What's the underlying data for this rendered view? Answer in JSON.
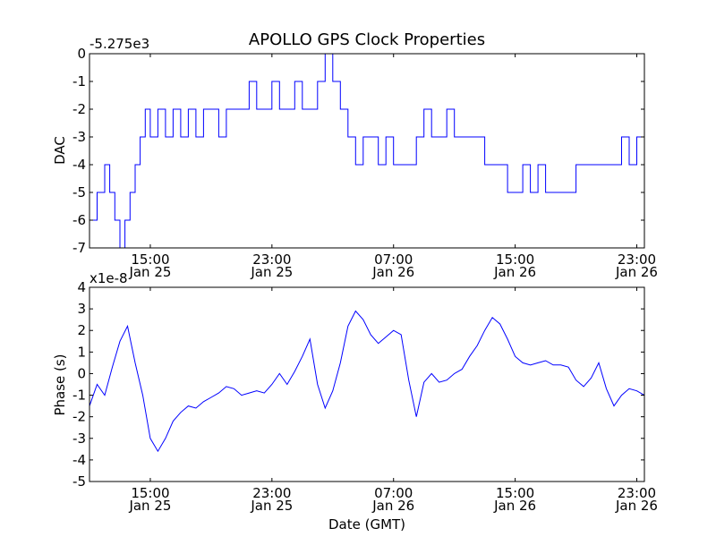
{
  "title": "APOLLO GPS Clock Properties",
  "colors": {
    "line": "#0000ff",
    "axes": "#000000",
    "background": "#ffffff"
  },
  "chart_data": [
    {
      "type": "line",
      "title": "APOLLO GPS Clock Properties",
      "ylabel": "DAC",
      "offset_label": "-5.275e3",
      "xlim": [
        "Jan 25 11:00",
        "Jan 26 23:30"
      ],
      "ylim": [
        -7,
        0
      ],
      "yticks": [
        0,
        -1,
        -2,
        -3,
        -4,
        -5,
        -6,
        -7
      ],
      "xtick_labels": [
        {
          "time": "15:00",
          "date": "Jan 25"
        },
        {
          "time": "23:00",
          "date": "Jan 25"
        },
        {
          "time": "07:00",
          "date": "Jan 26"
        },
        {
          "time": "15:00",
          "date": "Jan 26"
        },
        {
          "time": "23:00",
          "date": "Jan 26"
        }
      ],
      "grid": false,
      "series": [
        {
          "x": [
            "Jan 25 11:00",
            "Jan 25 11:30",
            "Jan 25 12:00",
            "Jan 25 12:20",
            "Jan 25 12:40",
            "Jan 25 13:00",
            "Jan 25 13:20",
            "Jan 25 13:40",
            "Jan 25 14:00",
            "Jan 25 14:20",
            "Jan 25 14:40",
            "Jan 25 15:00",
            "Jan 25 15:30",
            "Jan 25 16:00",
            "Jan 25 16:30",
            "Jan 25 17:00",
            "Jan 25 17:30",
            "Jan 25 18:00",
            "Jan 25 18:30",
            "Jan 25 19:00",
            "Jan 25 19:30",
            "Jan 25 20:00",
            "Jan 25 20:30",
            "Jan 25 21:00",
            "Jan 25 21:30",
            "Jan 25 22:00",
            "Jan 25 22:30",
            "Jan 25 23:00",
            "Jan 25 23:30",
            "Jan 26 00:00",
            "Jan 26 00:30",
            "Jan 26 01:00",
            "Jan 26 01:30",
            "Jan 26 02:00",
            "Jan 26 02:30",
            "Jan 26 03:00",
            "Jan 26 03:30",
            "Jan 26 04:00",
            "Jan 26 04:30",
            "Jan 26 05:00",
            "Jan 26 05:30",
            "Jan 26 06:00",
            "Jan 26 06:30",
            "Jan 26 07:00",
            "Jan 26 07:30",
            "Jan 26 08:00",
            "Jan 26 08:30",
            "Jan 26 09:00",
            "Jan 26 09:30",
            "Jan 26 10:00",
            "Jan 26 10:30",
            "Jan 26 11:00",
            "Jan 26 11:30",
            "Jan 26 12:00",
            "Jan 26 12:30",
            "Jan 26 13:00",
            "Jan 26 13:30",
            "Jan 26 14:00",
            "Jan 26 14:30",
            "Jan 26 15:00",
            "Jan 26 15:30",
            "Jan 26 16:00",
            "Jan 26 16:30",
            "Jan 26 17:00",
            "Jan 26 17:30",
            "Jan 26 18:00",
            "Jan 26 18:30",
            "Jan 26 19:00",
            "Jan 26 19:30",
            "Jan 26 20:00",
            "Jan 26 20:30",
            "Jan 26 21:00",
            "Jan 26 21:30",
            "Jan 26 22:00",
            "Jan 26 22:30",
            "Jan 26 23:00",
            "Jan 26 23:30"
          ],
          "y": [
            -6,
            -5,
            -4,
            -5,
            -6,
            -7,
            -6,
            -5,
            -4,
            -3,
            -2,
            -3,
            -2,
            -3,
            -2,
            -3,
            -2,
            -3,
            -2,
            -2,
            -3,
            -2,
            -2,
            -2,
            -1,
            -2,
            -2,
            -1,
            -2,
            -2,
            -1,
            -2,
            -2,
            -1,
            0,
            -1,
            -2,
            -3,
            -4,
            -3,
            -3,
            -4,
            -3,
            -4,
            -4,
            -4,
            -3,
            -2,
            -3,
            -3,
            -2,
            -3,
            -3,
            -3,
            -3,
            -4,
            -4,
            -4,
            -5,
            -5,
            -4,
            -5,
            -4,
            -5,
            -5,
            -5,
            -5,
            -4,
            -4,
            -4,
            -4,
            -4,
            -4,
            -3,
            -4,
            -3,
            -4
          ],
          "step": true
        }
      ]
    },
    {
      "type": "line",
      "ylabel": "Phase (s)",
      "xlabel": "Date (GMT)",
      "offset_label": "x1e-8",
      "xlim": [
        "Jan 25 11:00",
        "Jan 26 23:30"
      ],
      "ylim": [
        -5,
        4
      ],
      "yticks": [
        4,
        3,
        2,
        1,
        0,
        -1,
        -2,
        -3,
        -4,
        -5
      ],
      "xtick_labels": [
        {
          "time": "15:00",
          "date": "Jan 25"
        },
        {
          "time": "23:00",
          "date": "Jan 25"
        },
        {
          "time": "07:00",
          "date": "Jan 26"
        },
        {
          "time": "15:00",
          "date": "Jan 26"
        },
        {
          "time": "23:00",
          "date": "Jan 26"
        }
      ],
      "grid": false,
      "series": [
        {
          "x": [
            "Jan 25 11:00",
            "Jan 25 11:30",
            "Jan 25 12:00",
            "Jan 25 12:30",
            "Jan 25 13:00",
            "Jan 25 13:30",
            "Jan 25 14:00",
            "Jan 25 14:30",
            "Jan 25 15:00",
            "Jan 25 15:30",
            "Jan 25 16:00",
            "Jan 25 16:30",
            "Jan 25 17:00",
            "Jan 25 17:30",
            "Jan 25 18:00",
            "Jan 25 18:30",
            "Jan 25 19:00",
            "Jan 25 19:30",
            "Jan 25 20:00",
            "Jan 25 20:30",
            "Jan 25 21:00",
            "Jan 25 21:30",
            "Jan 25 22:00",
            "Jan 25 22:30",
            "Jan 25 23:00",
            "Jan 25 23:30",
            "Jan 26 00:00",
            "Jan 26 00:30",
            "Jan 26 01:00",
            "Jan 26 01:30",
            "Jan 26 02:00",
            "Jan 26 02:30",
            "Jan 26 03:00",
            "Jan 26 03:30",
            "Jan 26 04:00",
            "Jan 26 04:30",
            "Jan 26 05:00",
            "Jan 26 05:30",
            "Jan 26 06:00",
            "Jan 26 06:30",
            "Jan 26 07:00",
            "Jan 26 07:30",
            "Jan 26 08:00",
            "Jan 26 08:30",
            "Jan 26 09:00",
            "Jan 26 09:30",
            "Jan 26 10:00",
            "Jan 26 10:30",
            "Jan 26 11:00",
            "Jan 26 11:30",
            "Jan 26 12:00",
            "Jan 26 12:30",
            "Jan 26 13:00",
            "Jan 26 13:30",
            "Jan 26 14:00",
            "Jan 26 14:30",
            "Jan 26 15:00",
            "Jan 26 15:30",
            "Jan 26 16:00",
            "Jan 26 16:30",
            "Jan 26 17:00",
            "Jan 26 17:30",
            "Jan 26 18:00",
            "Jan 26 18:30",
            "Jan 26 19:00",
            "Jan 26 19:30",
            "Jan 26 20:00",
            "Jan 26 20:30",
            "Jan 26 21:00",
            "Jan 26 21:30",
            "Jan 26 22:00",
            "Jan 26 22:30",
            "Jan 26 23:00",
            "Jan 26 23:30"
          ],
          "y": [
            -1.5,
            -0.5,
            -1.0,
            0.3,
            1.5,
            2.2,
            0.5,
            -1.0,
            -3.0,
            -3.6,
            -3.0,
            -2.2,
            -1.8,
            -1.5,
            -1.6,
            -1.3,
            -1.1,
            -0.9,
            -0.6,
            -0.7,
            -1.0,
            -0.9,
            -0.8,
            -0.9,
            -0.5,
            0.0,
            -0.5,
            0.1,
            0.8,
            1.6,
            -0.5,
            -1.6,
            -0.8,
            0.5,
            2.2,
            2.9,
            2.5,
            1.8,
            1.4,
            1.7,
            2.0,
            1.8,
            -0.3,
            -2.0,
            -0.4,
            0.0,
            -0.4,
            -0.3,
            0.0,
            0.2,
            0.8,
            1.3,
            2.0,
            2.6,
            2.3,
            1.6,
            0.8,
            0.5,
            0.4,
            0.5,
            0.6,
            0.4,
            0.4,
            0.3,
            -0.3,
            -0.6,
            -0.2,
            0.5,
            -0.7,
            -1.5,
            -1.0,
            -0.7,
            -0.8,
            -1.0
          ]
        }
      ]
    }
  ]
}
